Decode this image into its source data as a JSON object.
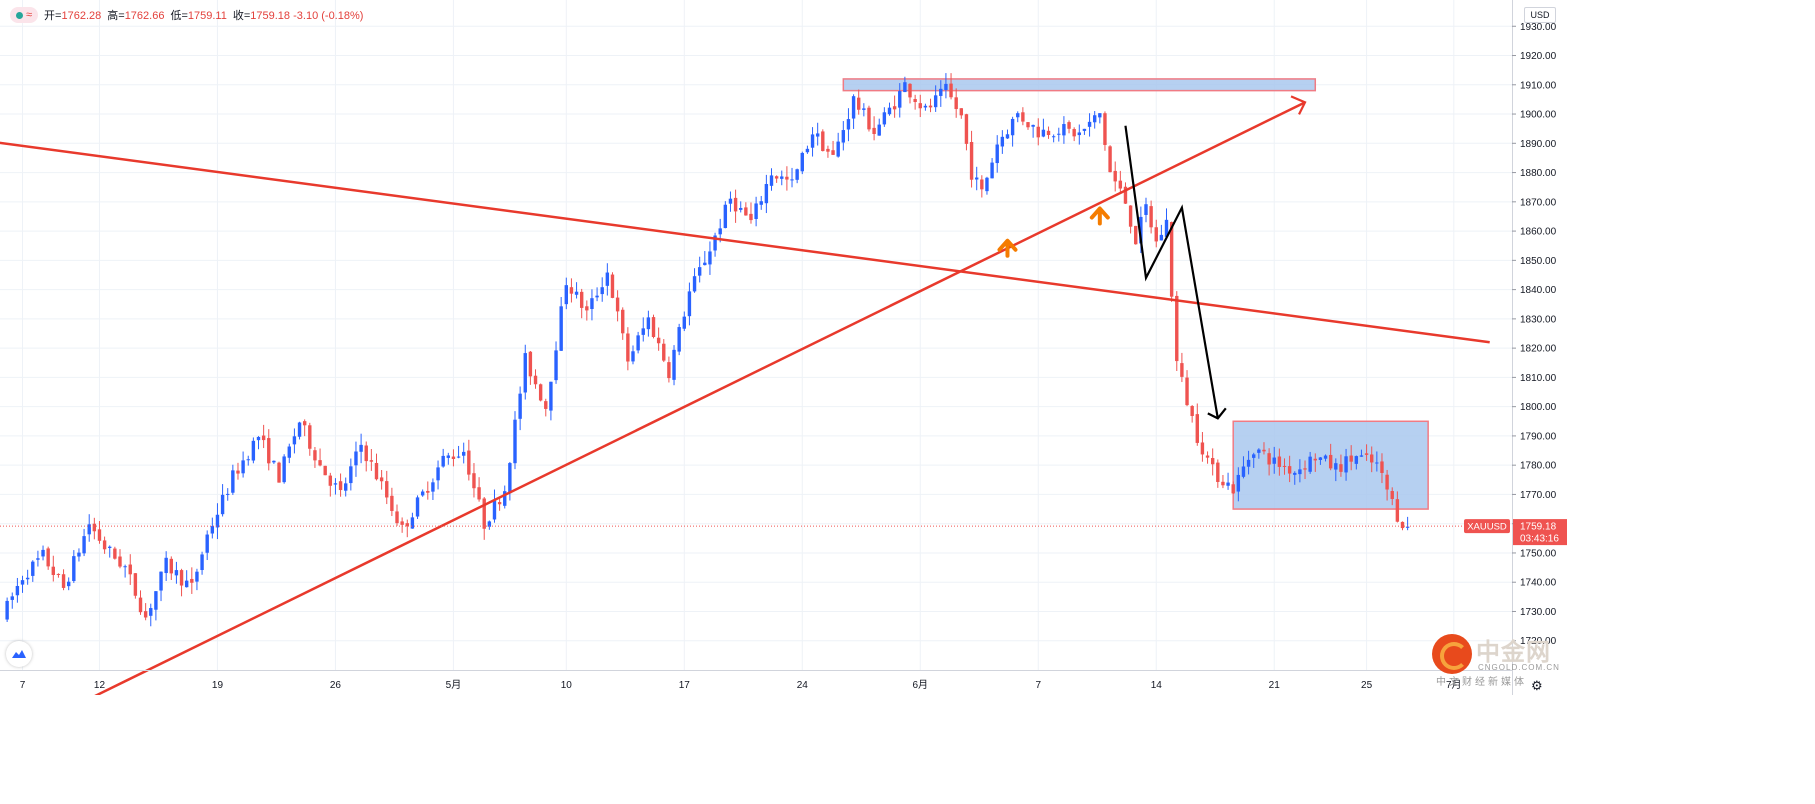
{
  "header": {
    "indicator_dot_color": "#26a69a",
    "indicator_icon": "wave-icon",
    "open_label": "开=",
    "open_value": "1762.28",
    "high_label": "高=",
    "high_value": "1762.66",
    "low_label": "低=",
    "low_value": "1759.11",
    "close_label": "收=",
    "close_value": "1759.18",
    "change": "-3.10 (-0.18%)"
  },
  "currency": "USD",
  "price_tag": {
    "symbol": "XAUUSD",
    "price": "1759.18",
    "countdown": "03:43:16",
    "color": "#ef5350"
  },
  "branding": {
    "name": "中金网",
    "domain": "CNGOLD.COM.CN",
    "slogan": "中文财经新媒体"
  },
  "colors": {
    "up": "#2962ff",
    "down": "#ef5350",
    "trendline": "#e8392c",
    "annotation": "#000000",
    "marker": "#f57c00",
    "zone_fill": "#a9c8ee",
    "zone_border": "#f07b84",
    "grid": "#eef2f7"
  },
  "chart_data": {
    "type": "candlestick",
    "symbol": "XAUUSD",
    "timeframe": "H4",
    "currency": "USD",
    "ylim": [
      1710,
      1940
    ],
    "y_ticks": [
      "1720.00",
      "1730.00",
      "1740.00",
      "1750.00",
      "1760.00",
      "1770.00",
      "1780.00",
      "1790.00",
      "1800.00",
      "1810.00",
      "1820.00",
      "1830.00",
      "1840.00",
      "1850.00",
      "1860.00",
      "1870.00",
      "1880.00",
      "1890.00",
      "1900.00",
      "1910.00",
      "1920.00",
      "1930.00",
      "1940.00"
    ],
    "x_ticks": [
      "7",
      "12",
      "19",
      "26",
      "5月",
      "10",
      "17",
      "24",
      "6月",
      "7",
      "14",
      "21",
      "25",
      "7月"
    ],
    "last_price": 1759.18,
    "price_path": [
      [
        0,
        1728
      ],
      [
        4,
        1742
      ],
      [
        8,
        1749
      ],
      [
        12,
        1738
      ],
      [
        17,
        1760
      ],
      [
        20,
        1752
      ],
      [
        24,
        1745
      ],
      [
        28,
        1728
      ],
      [
        32,
        1746
      ],
      [
        37,
        1738
      ],
      [
        40,
        1756
      ],
      [
        45,
        1776
      ],
      [
        50,
        1790
      ],
      [
        54,
        1776
      ],
      [
        58,
        1795
      ],
      [
        62,
        1780
      ],
      [
        66,
        1770
      ],
      [
        70,
        1787
      ],
      [
        74,
        1773
      ],
      [
        78,
        1758
      ],
      [
        82,
        1770
      ],
      [
        86,
        1782
      ],
      [
        90,
        1785
      ],
      [
        94,
        1760
      ],
      [
        98,
        1772
      ],
      [
        102,
        1816
      ],
      [
        106,
        1800
      ],
      [
        110,
        1843
      ],
      [
        114,
        1832
      ],
      [
        118,
        1846
      ],
      [
        122,
        1816
      ],
      [
        126,
        1830
      ],
      [
        130,
        1812
      ],
      [
        134,
        1839
      ],
      [
        138,
        1854
      ],
      [
        142,
        1871
      ],
      [
        146,
        1863
      ],
      [
        150,
        1880
      ],
      [
        154,
        1876
      ],
      [
        158,
        1894
      ],
      [
        162,
        1885
      ],
      [
        166,
        1905
      ],
      [
        170,
        1894
      ],
      [
        174,
        1904
      ],
      [
        176,
        1910
      ],
      [
        180,
        1901
      ],
      [
        184,
        1908
      ],
      [
        187,
        1899
      ],
      [
        189,
        1880
      ],
      [
        191,
        1873
      ],
      [
        194,
        1890
      ],
      [
        198,
        1900
      ],
      [
        202,
        1894
      ],
      [
        206,
        1895
      ],
      [
        210,
        1893
      ],
      [
        214,
        1900
      ],
      [
        216,
        1880
      ],
      [
        219,
        1870
      ],
      [
        221,
        1857
      ],
      [
        223,
        1868
      ],
      [
        225,
        1856
      ],
      [
        227,
        1863
      ],
      [
        229,
        1815
      ],
      [
        231,
        1802
      ],
      [
        233,
        1790
      ],
      [
        236,
        1778
      ],
      [
        240,
        1772
      ],
      [
        244,
        1786
      ],
      [
        248,
        1781
      ],
      [
        252,
        1778
      ],
      [
        256,
        1783
      ],
      [
        260,
        1779
      ],
      [
        264,
        1783
      ],
      [
        268,
        1780
      ],
      [
        272,
        1763
      ],
      [
        274,
        1758
      ]
    ],
    "support_zone": {
      "from_price": 1765,
      "to_price": 1795
    },
    "resistance_zone": {
      "from_price": 1908,
      "to_price": 1912
    },
    "trendlines": [
      {
        "name": "falling-trendline",
        "from": {
          "bar": -4,
          "price": 1891
        },
        "to": {
          "bar": 290,
          "price": 1822
        }
      },
      {
        "name": "rising-trendline",
        "from": {
          "bar": 18,
          "price": 1701
        },
        "to": {
          "bar": 254,
          "price": 1904
        }
      }
    ],
    "projection_path": [
      [
        219,
        1896
      ],
      [
        223,
        1844
      ],
      [
        230,
        1868
      ],
      [
        237,
        1796
      ]
    ],
    "up_markers": [
      {
        "bar": 196,
        "price": 1855
      },
      {
        "bar": 214,
        "price": 1866
      }
    ]
  }
}
